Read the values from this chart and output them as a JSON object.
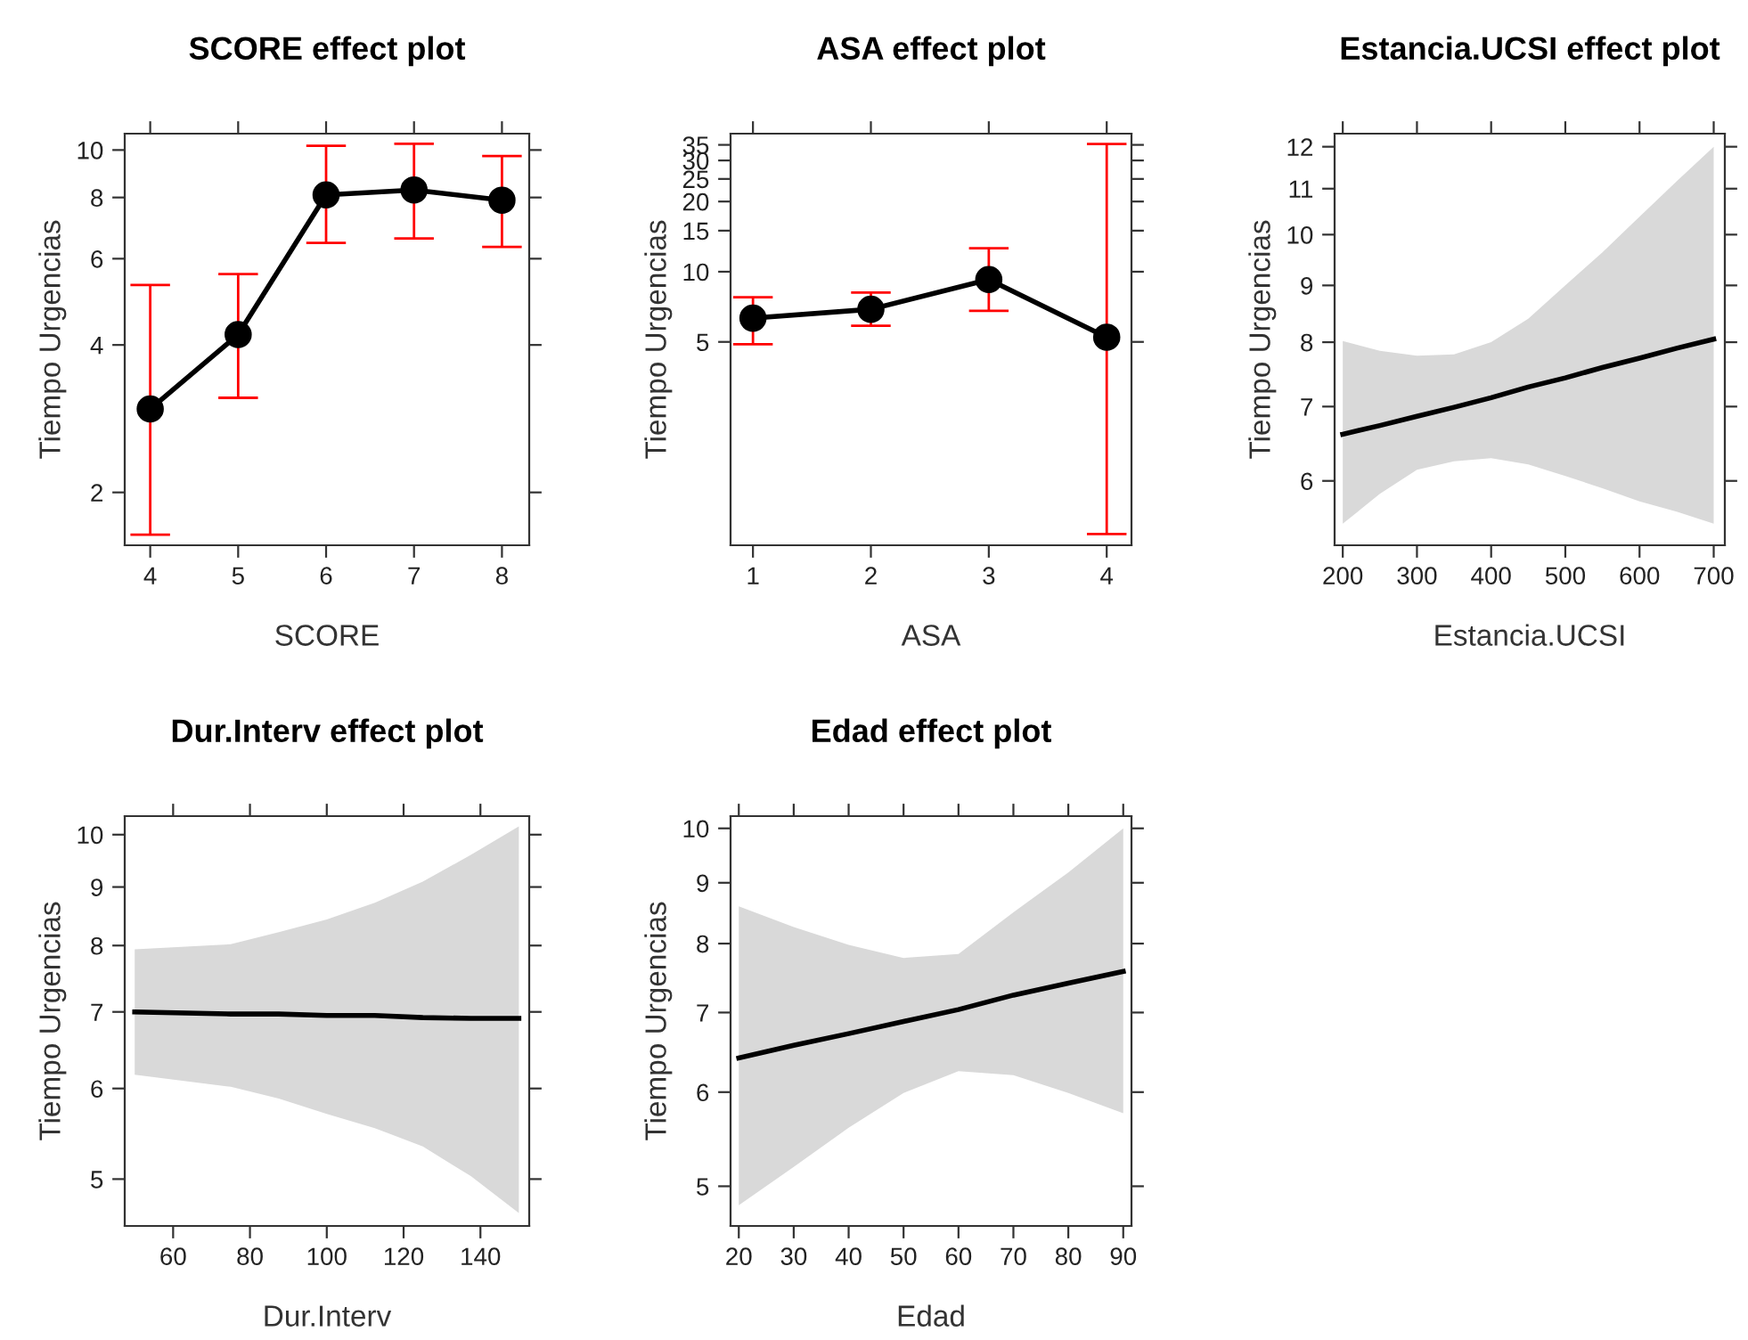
{
  "chart_data": [
    {
      "type": "line",
      "title": "SCORE effect plot",
      "xlabel": "SCORE",
      "ylabel": "Tiempo Urgencias",
      "log": "y",
      "marker": "circle",
      "grid": false,
      "legend": false,
      "x": [
        4,
        5,
        6,
        7,
        8
      ],
      "xlim": [
        3.71,
        8.31
      ],
      "xticks": [
        4,
        5,
        6,
        7,
        8
      ],
      "ylim": [
        1.56,
        10.8
      ],
      "yticks": [
        2,
        4,
        6,
        8,
        10
      ],
      "series": [
        {
          "color": "#000000",
          "values": [
            2.96,
            4.2,
            8.1,
            8.29,
            7.9
          ],
          "errors": [
            [
              1.64,
              5.3
            ],
            [
              3.12,
              5.58
            ],
            [
              6.46,
              10.2
            ],
            [
              6.6,
              10.3
            ],
            [
              6.34,
              9.72
            ]
          ]
        }
      ]
    },
    {
      "type": "line",
      "title": "ASA effect plot",
      "xlabel": "ASA",
      "ylabel": "Tiempo Urgencias",
      "log": "y",
      "marker": "circle",
      "grid": false,
      "legend": false,
      "x": [
        1,
        2,
        3,
        4
      ],
      "xlim": [
        0.81,
        4.21
      ],
      "xticks": [
        1,
        2,
        3,
        4
      ],
      "ylim": [
        0.671,
        39.1
      ],
      "yticks": [
        5,
        10,
        15,
        20,
        25,
        30,
        35
      ],
      "series": [
        {
          "color": "#000000",
          "values": [
            6.32,
            6.9,
            9.26,
            5.24
          ],
          "errors": [
            [
              4.89,
              7.77
            ],
            [
              5.86,
              8.14
            ],
            [
              6.79,
              12.6
            ],
            [
              0.75,
              35.3
            ]
          ]
        }
      ]
    },
    {
      "type": "line",
      "title": "Estancia.UCSI effect plot",
      "xlabel": "Estancia.UCSI",
      "ylabel": "Tiempo Urgencias",
      "log": "y",
      "marker": "none",
      "grid": false,
      "legend": false,
      "xlim": [
        189,
        715
      ],
      "xticks": [
        200,
        300,
        400,
        500,
        600,
        700
      ],
      "ylim": [
        5.25,
        12.33
      ],
      "yticks": [
        6,
        7,
        8,
        9,
        10,
        11,
        12
      ],
      "series": [
        {
          "color": "#000000",
          "x": [
            200,
            250,
            300,
            350,
            400,
            450,
            500,
            550,
            600,
            650,
            700
          ],
          "values": [
            6.61,
            6.73,
            6.86,
            6.99,
            7.13,
            7.29,
            7.43,
            7.59,
            7.74,
            7.9,
            8.05
          ],
          "lower": [
            5.49,
            5.84,
            6.14,
            6.25,
            6.29,
            6.21,
            6.06,
            5.91,
            5.75,
            5.63,
            5.49
          ],
          "upper": [
            8.02,
            7.86,
            7.78,
            7.8,
            8.0,
            8.4,
            9.0,
            9.64,
            10.38,
            11.17,
            12.0
          ]
        }
      ]
    },
    {
      "type": "line",
      "title": "Dur.Interv effect plot",
      "xlabel": "Dur.Interv",
      "ylabel": "Tiempo Urgencias",
      "log": "y",
      "marker": "none",
      "grid": false,
      "legend": false,
      "xlim": [
        47.4,
        152.7
      ],
      "xticks": [
        60,
        80,
        100,
        120,
        140
      ],
      "ylim": [
        4.55,
        10.38
      ],
      "yticks": [
        5,
        6,
        7,
        8,
        9,
        10
      ],
      "series": [
        {
          "color": "#000000",
          "x": [
            50,
            75,
            87.5,
            100,
            112.5,
            125,
            137.5,
            150
          ],
          "values": [
            7.0,
            6.97,
            6.97,
            6.95,
            6.95,
            6.92,
            6.91,
            6.91
          ],
          "lower": [
            6.17,
            6.02,
            5.88,
            5.7,
            5.54,
            5.34,
            5.03,
            4.67
          ],
          "upper": [
            7.94,
            8.02,
            8.22,
            8.43,
            8.72,
            9.1,
            9.6,
            10.17
          ]
        }
      ]
    },
    {
      "type": "line",
      "title": "Edad effect plot",
      "xlabel": "Edad",
      "ylabel": "Tiempo Urgencias",
      "log": "y",
      "marker": "none",
      "grid": false,
      "legend": false,
      "xlim": [
        18.5,
        91.5
      ],
      "xticks": [
        20,
        30,
        40,
        50,
        60,
        70,
        80,
        90
      ],
      "ylim": [
        4.63,
        10.24
      ],
      "yticks": [
        5,
        6,
        7,
        8,
        9,
        10
      ],
      "series": [
        {
          "color": "#000000",
          "x": [
            20,
            30,
            40,
            50,
            60,
            70,
            80,
            90
          ],
          "values": [
            6.41,
            6.57,
            6.72,
            6.88,
            7.04,
            7.24,
            7.41,
            7.58
          ],
          "lower": [
            4.82,
            5.19,
            5.6,
            5.99,
            6.25,
            6.2,
            5.99,
            5.76
          ],
          "upper": [
            8.6,
            8.26,
            7.98,
            7.78,
            7.84,
            8.5,
            9.18,
            10.0
          ]
        }
      ]
    }
  ]
}
